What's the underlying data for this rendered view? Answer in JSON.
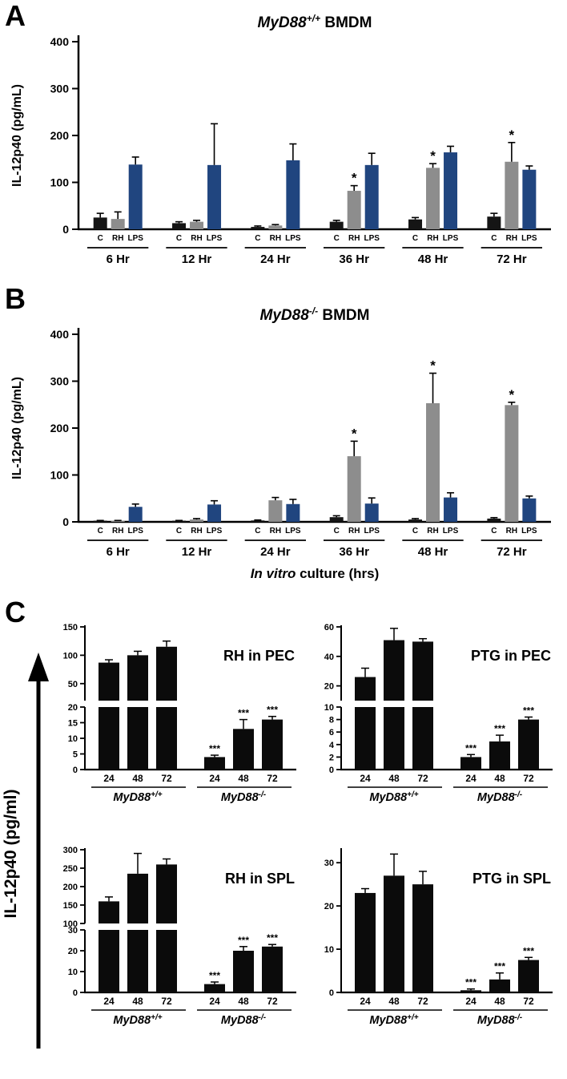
{
  "page": {
    "panel_a_label": "A",
    "panel_b_label": "B",
    "panel_c_label": "C",
    "panel_c_ylabel": "IL-12p40 (pg/ml)"
  },
  "chart_data": [
    {
      "id": "panel-a",
      "type": "grouped-bar",
      "title": {
        "gene": "MyD88",
        "sup": "+/+",
        "rest": " BMDM"
      },
      "ylabel": "IL-12p40 (pg/mL)",
      "ylim": [
        0,
        400
      ],
      "yticks": [
        0,
        100,
        200,
        300,
        400
      ],
      "series_labels": [
        "C",
        "RH",
        "LPS"
      ],
      "series_colors": [
        "#151515",
        "#8d8d8d",
        "#20457f"
      ],
      "groups": [
        {
          "label": "6 Hr",
          "values": [
            25,
            22,
            138
          ],
          "errors": [
            9,
            15,
            16
          ],
          "stars": [
            "",
            "",
            ""
          ]
        },
        {
          "label": "12 Hr",
          "values": [
            13,
            16,
            137
          ],
          "errors": [
            3,
            3,
            88
          ],
          "stars": [
            "",
            "",
            ""
          ]
        },
        {
          "label": "24 Hr",
          "values": [
            5,
            8,
            147
          ],
          "errors": [
            2,
            2,
            35
          ],
          "stars": [
            "",
            "",
            ""
          ]
        },
        {
          "label": "36 Hr",
          "values": [
            16,
            82,
            137
          ],
          "errors": [
            3,
            11,
            25
          ],
          "stars": [
            "",
            "*",
            ""
          ]
        },
        {
          "label": "48 Hr",
          "values": [
            21,
            131,
            164
          ],
          "errors": [
            4,
            9,
            13
          ],
          "stars": [
            "",
            "*",
            ""
          ]
        },
        {
          "label": "72 Hr",
          "values": [
            27,
            144,
            127
          ],
          "errors": [
            7,
            41,
            8
          ],
          "stars": [
            "",
            "*",
            ""
          ]
        }
      ]
    },
    {
      "id": "panel-b",
      "type": "grouped-bar",
      "title": {
        "gene": "MyD88",
        "sup": "-/-",
        "rest": " BMDM"
      },
      "ylabel": "IL-12p40 (pg/mL)",
      "xlabel": {
        "italic": "In vitro",
        "rest": " culture (hrs)"
      },
      "ylim": [
        0,
        400
      ],
      "yticks": [
        0,
        100,
        200,
        300,
        400
      ],
      "series_labels": [
        "C",
        "RH",
        "LPS"
      ],
      "series_colors": [
        "#151515",
        "#8d8d8d",
        "#20457f"
      ],
      "groups": [
        {
          "label": "6 Hr",
          "values": [
            2,
            2,
            32
          ],
          "errors": [
            1,
            1,
            6
          ],
          "stars": [
            "",
            "",
            ""
          ]
        },
        {
          "label": "12 Hr",
          "values": [
            2,
            5,
            37
          ],
          "errors": [
            1,
            2,
            8
          ],
          "stars": [
            "",
            "",
            ""
          ]
        },
        {
          "label": "24 Hr",
          "values": [
            3,
            46,
            38
          ],
          "errors": [
            1,
            6,
            10
          ],
          "stars": [
            "",
            "",
            ""
          ]
        },
        {
          "label": "36 Hr",
          "values": [
            10,
            140,
            39
          ],
          "errors": [
            3,
            32,
            12
          ],
          "stars": [
            "",
            "*",
            ""
          ]
        },
        {
          "label": "48 Hr",
          "values": [
            5,
            253,
            52
          ],
          "errors": [
            2,
            64,
            10
          ],
          "stars": [
            "",
            "*",
            ""
          ]
        },
        {
          "label": "72 Hr",
          "values": [
            7,
            249,
            50
          ],
          "errors": [
            2,
            6,
            5
          ],
          "stars": [
            "",
            "*",
            ""
          ]
        }
      ]
    },
    {
      "id": "rh-pec",
      "type": "broken-bar",
      "title": "RH in PEC",
      "bar_color": "#0b0b0b",
      "segments": {
        "upper": {
          "ylim": [
            20,
            150
          ],
          "yticks": [
            50,
            100,
            150
          ]
        },
        "lower": {
          "ylim": [
            0,
            20
          ],
          "yticks": [
            0,
            5,
            10,
            15,
            20
          ]
        }
      },
      "groups": [
        {
          "label": {
            "gene": "MyD88",
            "sup": "+/+"
          },
          "x": [
            "24",
            "48",
            "72"
          ],
          "values": [
            87,
            100,
            115
          ],
          "errors": [
            5,
            7,
            10
          ],
          "stars": [
            "",
            "",
            ""
          ]
        },
        {
          "label": {
            "gene": "MyD88",
            "sup": "-/-"
          },
          "x": [
            "24",
            "48",
            "72"
          ],
          "values": [
            4,
            13,
            16
          ],
          "errors": [
            0.6,
            3,
            1
          ],
          "stars": [
            "***",
            "***",
            "***"
          ]
        }
      ]
    },
    {
      "id": "ptg-pec",
      "type": "broken-bar",
      "title": "PTG in PEC",
      "bar_color": "#0b0b0b",
      "segments": {
        "upper": {
          "ylim": [
            10,
            60
          ],
          "yticks": [
            20,
            40,
            60
          ]
        },
        "lower": {
          "ylim": [
            0,
            10
          ],
          "yticks": [
            0,
            2,
            4,
            6,
            8,
            10
          ]
        }
      },
      "groups": [
        {
          "label": {
            "gene": "MyD88",
            "sup": "+/+"
          },
          "x": [
            "24",
            "48",
            "72"
          ],
          "values": [
            26,
            51,
            50
          ],
          "errors": [
            6,
            8,
            2
          ],
          "stars": [
            "",
            "",
            ""
          ]
        },
        {
          "label": {
            "gene": "MyD88",
            "sup": "-/-"
          },
          "x": [
            "24",
            "48",
            "72"
          ],
          "values": [
            2,
            4.5,
            8
          ],
          "errors": [
            0.4,
            1,
            0.4
          ],
          "stars": [
            "***",
            "***",
            "***"
          ]
        }
      ]
    },
    {
      "id": "rh-spl",
      "type": "broken-bar",
      "title": "RH in SPL",
      "bar_color": "#0b0b0b",
      "segments": {
        "upper": {
          "ylim": [
            100,
            300
          ],
          "yticks": [
            100,
            150,
            200,
            250,
            300
          ]
        },
        "lower": {
          "ylim": [
            0,
            30
          ],
          "yticks": [
            0,
            10,
            20,
            30
          ]
        }
      },
      "groups": [
        {
          "label": {
            "gene": "MyD88",
            "sup": "+/+"
          },
          "x": [
            "24",
            "48",
            "72"
          ],
          "values": [
            160,
            235,
            260
          ],
          "errors": [
            12,
            55,
            15
          ],
          "stars": [
            "",
            "",
            ""
          ]
        },
        {
          "label": {
            "gene": "MyD88",
            "sup": "-/-"
          },
          "x": [
            "24",
            "48",
            "72"
          ],
          "values": [
            4,
            20,
            22
          ],
          "errors": [
            1,
            2,
            1
          ],
          "stars": [
            "***",
            "***",
            "***"
          ]
        }
      ]
    },
    {
      "id": "ptg-spl",
      "type": "single-bar",
      "title": "PTG in SPL",
      "bar_color": "#0b0b0b",
      "ylim": [
        0,
        33
      ],
      "yticks": [
        0,
        10,
        20,
        30
      ],
      "groups": [
        {
          "label": {
            "gene": "MyD88",
            "sup": "+/+"
          },
          "x": [
            "24",
            "48",
            "72"
          ],
          "values": [
            23,
            27,
            25
          ],
          "errors": [
            1,
            5,
            3
          ],
          "stars": [
            "",
            "",
            ""
          ]
        },
        {
          "label": {
            "gene": "MyD88",
            "sup": "-/-"
          },
          "x": [
            "24",
            "48",
            "72"
          ],
          "values": [
            0.5,
            3,
            7.5
          ],
          "errors": [
            0.3,
            1.5,
            0.6
          ],
          "stars": [
            "***",
            "***",
            "***"
          ]
        }
      ]
    }
  ]
}
